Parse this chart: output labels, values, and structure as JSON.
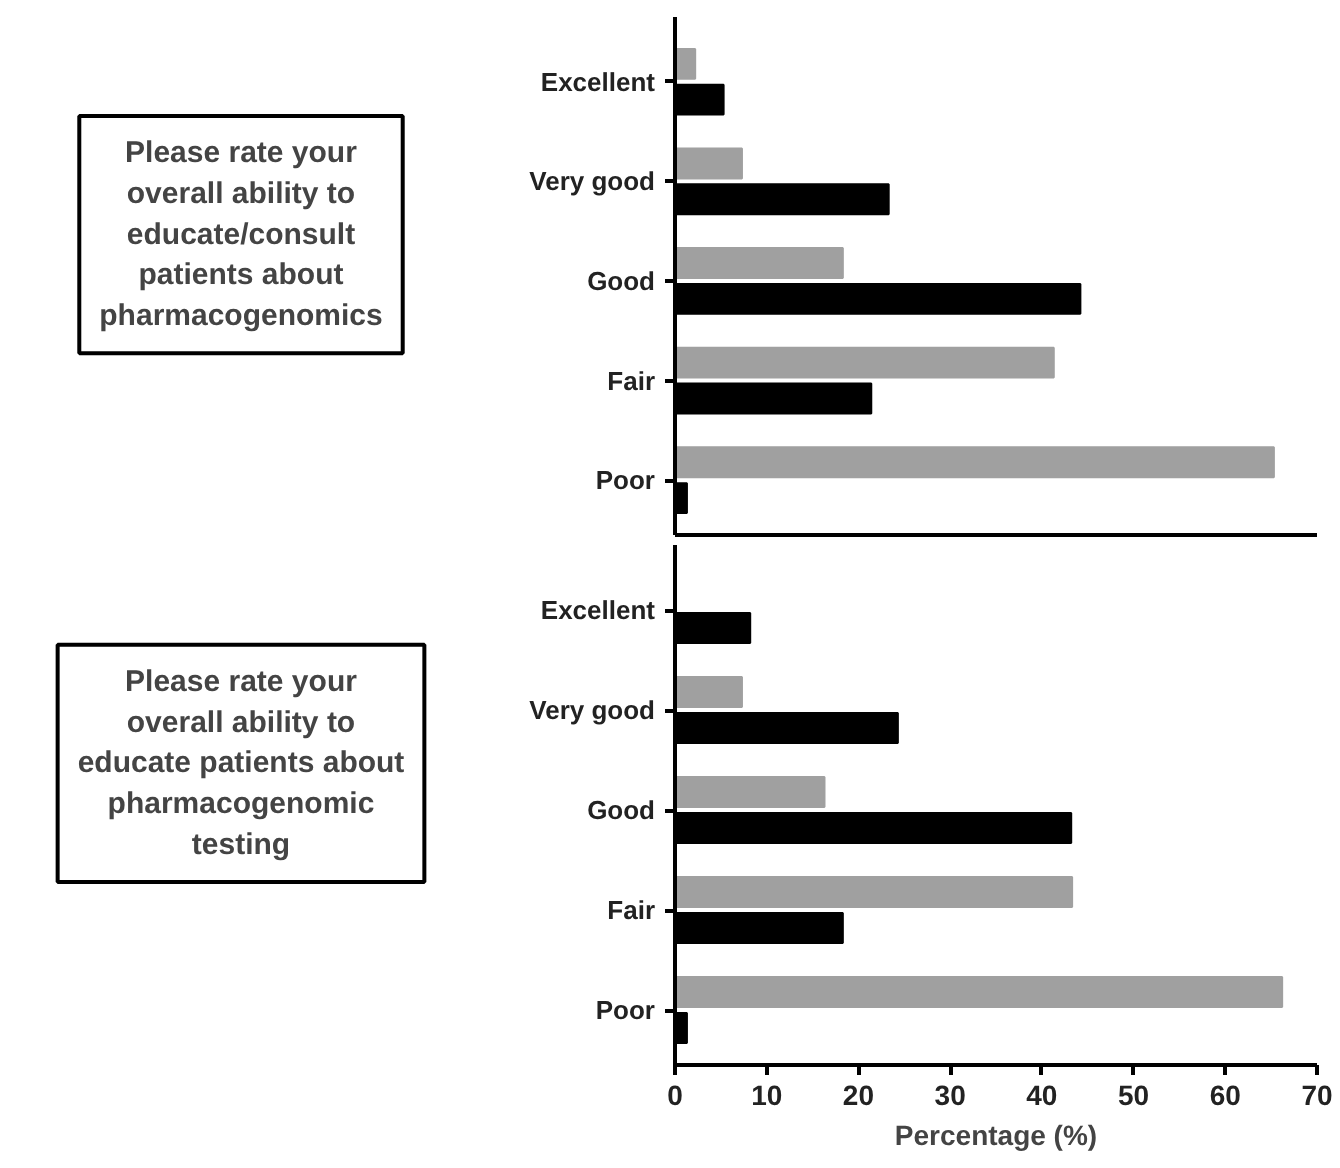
{
  "chart_data": [
    {
      "type": "bar",
      "orientation": "horizontal",
      "categories": [
        "Excellent",
        "Very good",
        "Good",
        "Fair",
        "Poor"
      ],
      "series": [
        {
          "color": "#a0a0a0",
          "values": [
            2.2,
            7.3,
            18.3,
            41.3,
            65.3
          ]
        },
        {
          "color": "#000000",
          "values": [
            5.3,
            23.3,
            44.2,
            21.4,
            1.3
          ]
        }
      ],
      "xlim": [
        0,
        70
      ],
      "xticks": [
        0,
        10,
        20,
        30,
        40,
        50,
        60,
        70
      ],
      "tick_labels": "y",
      "grid": false,
      "annotations": [
        "Please rate your overall ability to educate/consult patients about pharmacogenomics"
      ]
    },
    {
      "type": "bar",
      "orientation": "horizontal",
      "categories": [
        "Excellent",
        "Very good",
        "Good",
        "Fair",
        "Poor"
      ],
      "series": [
        {
          "color": "#a0a0a0",
          "values": [
            0,
            7.3,
            16.3,
            43.3,
            66.2
          ]
        },
        {
          "color": "#000000",
          "values": [
            8.2,
            24.3,
            43.2,
            18.3,
            1.3
          ]
        }
      ],
      "xlim": [
        0,
        70
      ],
      "xticks": [
        0,
        10,
        20,
        30,
        40,
        50,
        60,
        70
      ],
      "xlabel": "Percentage (%)",
      "grid": false,
      "annotations": [
        "Please rate your overall ability to educate patients about pharmacogenomic testing"
      ]
    }
  ]
}
